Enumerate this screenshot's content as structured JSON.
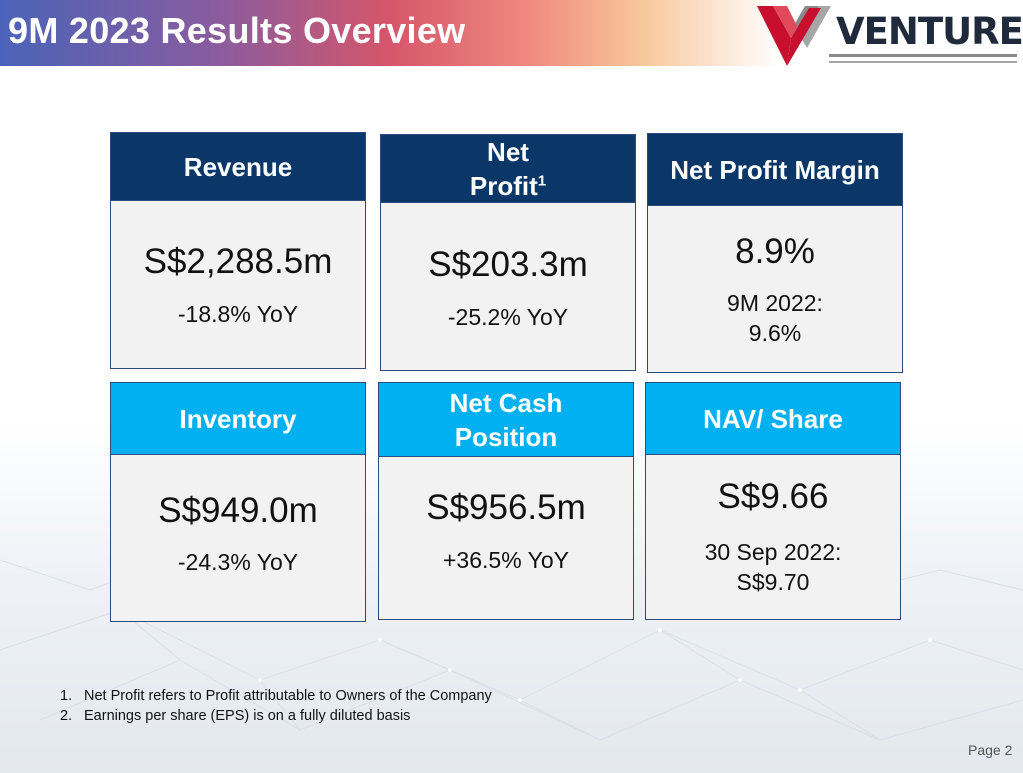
{
  "header": {
    "title": "9M 2023 Results Overview",
    "logo_text": "VENTURE"
  },
  "cards": [
    {
      "heading": "Revenue",
      "value": "S$2,288.5m",
      "sub": "-18.8% YoY"
    },
    {
      "heading": "Net Profit",
      "heading_sup": "1",
      "value": "S$203.3m",
      "sub": "-25.2% YoY"
    },
    {
      "heading": "Net Profit Margin",
      "value": "8.9%",
      "sub_line1": "9M 2022:",
      "sub_line2": "9.6%"
    },
    {
      "heading": "Inventory",
      "value": "S$949.0m",
      "sub": "-24.3% YoY"
    },
    {
      "heading": "Net Cash Position",
      "value": "S$956.5m",
      "sub": "+36.5% YoY"
    },
    {
      "heading": "NAV/ Share",
      "value": "S$9.66",
      "sub_line1": "30 Sep 2022:",
      "sub_line2": "S$9.70"
    }
  ],
  "footnotes": [
    {
      "num": "1.",
      "text": "Net Profit refers to Profit attributable to Owners of the Company"
    },
    {
      "num": "2.",
      "text": "Earnings per share (EPS) is on a fully diluted basis"
    }
  ],
  "page_label": "Page 2",
  "colors": {
    "dark_header": "#0b3768",
    "light_header": "#00b0f0",
    "logo_red": "#c8102e",
    "logo_text": "#1f2a3c"
  }
}
